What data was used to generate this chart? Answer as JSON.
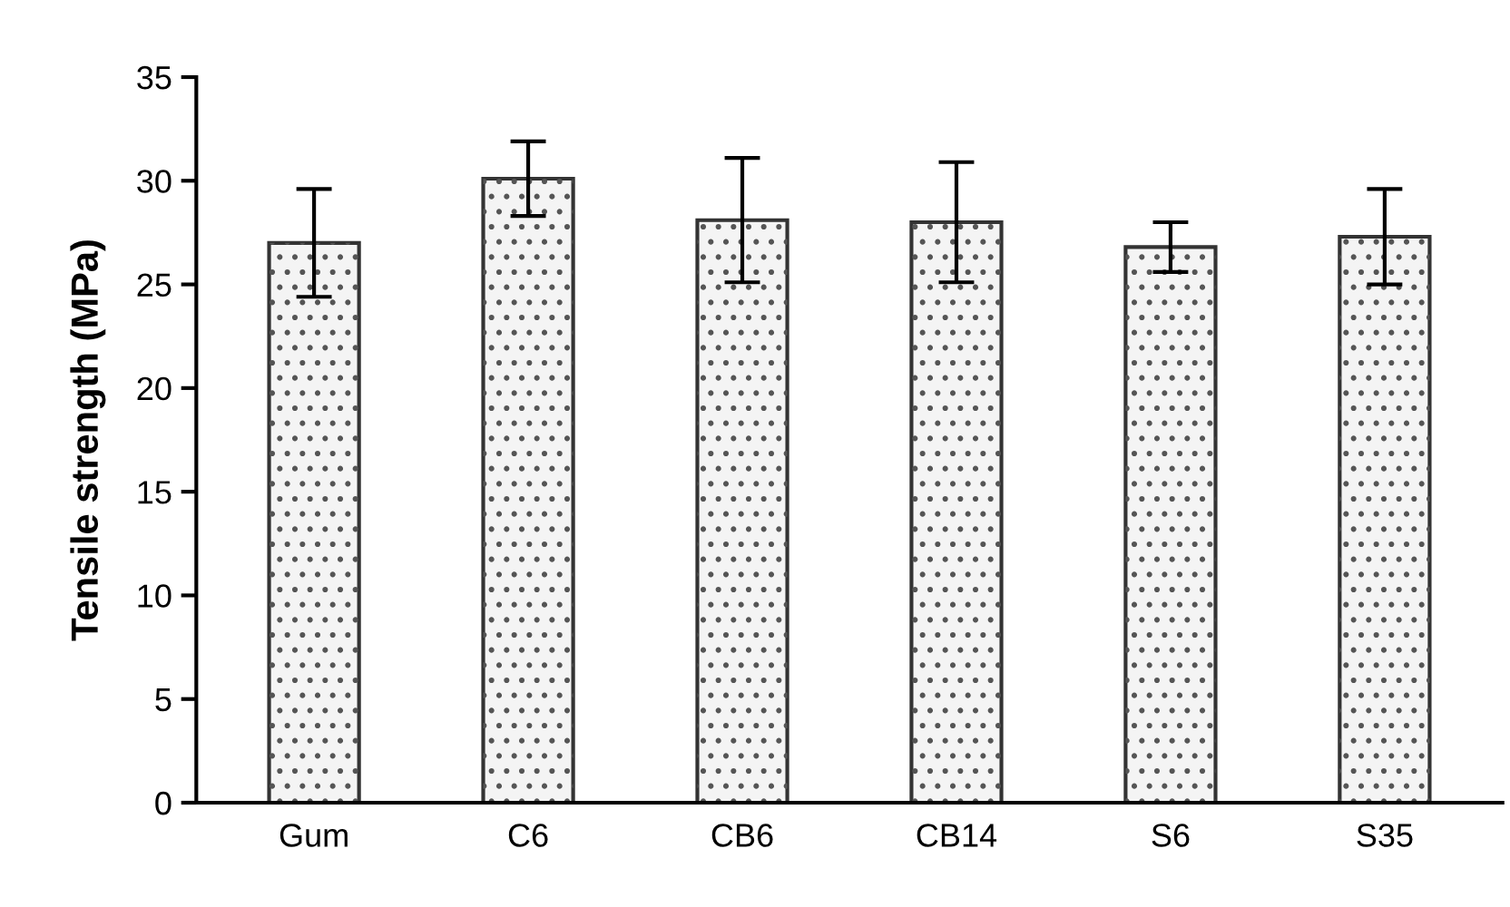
{
  "chart_data": {
    "type": "bar",
    "ylabel": "Tensile strength (MPa)",
    "categories": [
      "Gum",
      "C6",
      "CB6",
      "CB14",
      "S6",
      "S35"
    ],
    "values": [
      27.0,
      30.1,
      28.1,
      28.0,
      26.8,
      27.3
    ],
    "errors": [
      2.6,
      1.8,
      3.0,
      2.9,
      1.2,
      2.3
    ],
    "color": "#f4f4f4",
    "ylim": [
      0,
      35
    ],
    "yticks": [
      0,
      5,
      10,
      15,
      20,
      25,
      30,
      35
    ],
    "grid": false
  }
}
